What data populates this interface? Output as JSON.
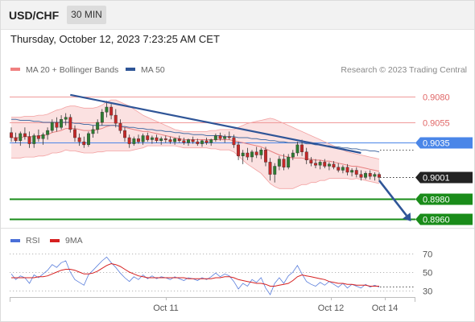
{
  "header": {
    "symbol": "USD/CHF",
    "timeframe": "30 MIN"
  },
  "timestamp": "Thursday, October 12, 2023 7:23:25 AM CET",
  "colors": {
    "bull": "#2e7d32",
    "bear": "#c62828",
    "ma50": "#4a6fa5",
    "band": "#f8c8c8",
    "trend": "#2f5597",
    "current": "#222222",
    "support": "#1a8c1a",
    "pivot": "#4a86e8",
    "resistance": "#e06666"
  },
  "chart_data": [
    {
      "type": "candlestick",
      "legend": [
        {
          "name": "MA 20 + Bollinger Bands",
          "color": "#f08080"
        },
        {
          "name": "MA 50",
          "color": "#2f5597"
        }
      ],
      "attribution": "Research © 2023 Trading Central",
      "x_ticks": [
        "Oct 11",
        "Oct 12",
        "Oct 14"
      ],
      "levels": [
        {
          "value": 0.908,
          "label": "0.9080",
          "kind": "resistance"
        },
        {
          "value": 0.9055,
          "label": "0.9055",
          "kind": "resistance"
        },
        {
          "value": 0.9035,
          "label": "0.9035",
          "kind": "pivot"
        },
        {
          "value": 0.9001,
          "label": "0.9001",
          "kind": "current"
        },
        {
          "value": 0.898,
          "label": "0.8980",
          "kind": "support"
        },
        {
          "value": 0.896,
          "label": "0.8960",
          "kind": "support"
        }
      ],
      "y_range": [
        0.895,
        0.91
      ],
      "candles": [
        [
          0.9045,
          0.905,
          0.9036,
          0.904
        ],
        [
          0.904,
          0.9045,
          0.9035,
          0.9037
        ],
        [
          0.9037,
          0.9046,
          0.9032,
          0.9044
        ],
        [
          0.9044,
          0.905,
          0.9038,
          0.9041
        ],
        [
          0.9041,
          0.9046,
          0.903,
          0.9034
        ],
        [
          0.9034,
          0.9044,
          0.903,
          0.9042
        ],
        [
          0.9042,
          0.9048,
          0.9036,
          0.9039
        ],
        [
          0.9039,
          0.9045,
          0.9033,
          0.9043
        ],
        [
          0.9043,
          0.905,
          0.9038,
          0.9047
        ],
        [
          0.9047,
          0.9058,
          0.9045,
          0.9055
        ],
        [
          0.9055,
          0.906,
          0.9046,
          0.905
        ],
        [
          0.905,
          0.9062,
          0.9048,
          0.9058
        ],
        [
          0.9058,
          0.9064,
          0.9052,
          0.906
        ],
        [
          0.906,
          0.9063,
          0.9045,
          0.9048
        ],
        [
          0.9048,
          0.9052,
          0.9036,
          0.904
        ],
        [
          0.904,
          0.9044,
          0.9032,
          0.9036
        ],
        [
          0.9036,
          0.9041,
          0.903,
          0.9033
        ],
        [
          0.9033,
          0.9046,
          0.9031,
          0.9044
        ],
        [
          0.9044,
          0.9052,
          0.904,
          0.9048
        ],
        [
          0.9048,
          0.9058,
          0.9044,
          0.9055
        ],
        [
          0.9055,
          0.9068,
          0.9052,
          0.9065
        ],
        [
          0.9065,
          0.9076,
          0.906,
          0.907
        ],
        [
          0.907,
          0.9073,
          0.9058,
          0.9062
        ],
        [
          0.9062,
          0.9068,
          0.905,
          0.9054
        ],
        [
          0.9054,
          0.9058,
          0.9044,
          0.9047
        ],
        [
          0.9047,
          0.905,
          0.9036,
          0.904
        ],
        [
          0.904,
          0.9043,
          0.903,
          0.9034
        ],
        [
          0.9034,
          0.9041,
          0.9032,
          0.9039
        ],
        [
          0.9039,
          0.9043,
          0.9034,
          0.9036
        ],
        [
          0.9036,
          0.9044,
          0.9033,
          0.9042
        ],
        [
          0.9042,
          0.9045,
          0.9036,
          0.9038
        ],
        [
          0.9038,
          0.9042,
          0.9034,
          0.904
        ],
        [
          0.904,
          0.9043,
          0.9035,
          0.9037
        ],
        [
          0.9037,
          0.9041,
          0.9033,
          0.9039
        ],
        [
          0.9039,
          0.9042,
          0.9035,
          0.9038
        ],
        [
          0.9038,
          0.9041,
          0.9034,
          0.9036
        ],
        [
          0.9036,
          0.904,
          0.9033,
          0.9039
        ],
        [
          0.9039,
          0.9042,
          0.9035,
          0.9037
        ],
        [
          0.9037,
          0.904,
          0.9033,
          0.9035
        ],
        [
          0.9035,
          0.9039,
          0.9032,
          0.9038
        ],
        [
          0.9038,
          0.9041,
          0.9034,
          0.9036
        ],
        [
          0.9036,
          0.9039,
          0.9032,
          0.9034
        ],
        [
          0.9034,
          0.9038,
          0.9031,
          0.9037
        ],
        [
          0.9037,
          0.904,
          0.9033,
          0.9035
        ],
        [
          0.9035,
          0.9039,
          0.9032,
          0.9038
        ],
        [
          0.9038,
          0.9044,
          0.9036,
          0.9042
        ],
        [
          0.9042,
          0.9045,
          0.9037,
          0.9039
        ],
        [
          0.9039,
          0.9043,
          0.9035,
          0.9041
        ],
        [
          0.9041,
          0.9046,
          0.9038,
          0.904
        ],
        [
          0.904,
          0.9043,
          0.903,
          0.9033
        ],
        [
          0.9033,
          0.9036,
          0.9018,
          0.9022
        ],
        [
          0.9022,
          0.9028,
          0.9014,
          0.9025
        ],
        [
          0.9025,
          0.903,
          0.9018,
          0.9021
        ],
        [
          0.9021,
          0.9028,
          0.9016,
          0.9026
        ],
        [
          0.9026,
          0.9031,
          0.902,
          0.9023
        ],
        [
          0.9023,
          0.903,
          0.9019,
          0.9028
        ],
        [
          0.9028,
          0.9031,
          0.9012,
          0.9016
        ],
        [
          0.9016,
          0.902,
          0.8998,
          0.9004
        ],
        [
          0.9004,
          0.9015,
          0.8996,
          0.9012
        ],
        [
          0.9012,
          0.9022,
          0.9008,
          0.9019
        ],
        [
          0.9019,
          0.9024,
          0.9008,
          0.9011
        ],
        [
          0.9011,
          0.9024,
          0.9009,
          0.9021
        ],
        [
          0.9021,
          0.9028,
          0.9018,
          0.9025
        ],
        [
          0.9025,
          0.9036,
          0.9022,
          0.9033
        ],
        [
          0.9033,
          0.9038,
          0.9022,
          0.9026
        ],
        [
          0.9026,
          0.903,
          0.9014,
          0.9018
        ],
        [
          0.9018,
          0.9021,
          0.9012,
          0.9015
        ],
        [
          0.9015,
          0.9019,
          0.901,
          0.9013
        ],
        [
          0.9013,
          0.9018,
          0.9009,
          0.9016
        ],
        [
          0.9016,
          0.9019,
          0.901,
          0.9012
        ],
        [
          0.9012,
          0.9016,
          0.9008,
          0.9014
        ],
        [
          0.9014,
          0.9017,
          0.9009,
          0.9011
        ],
        [
          0.9011,
          0.9015,
          0.9006,
          0.9008
        ],
        [
          0.9008,
          0.9013,
          0.9005,
          0.9011
        ],
        [
          0.9011,
          0.9014,
          0.9003,
          0.9006
        ],
        [
          0.9006,
          0.901,
          0.9002,
          0.9008
        ],
        [
          0.9008,
          0.9011,
          0.9001,
          0.9004
        ],
        [
          0.9004,
          0.9008,
          0.8998,
          0.9001
        ],
        [
          0.9001,
          0.9007,
          0.8999,
          0.9005
        ],
        [
          0.9005,
          0.9008,
          0.8999,
          0.9002
        ],
        [
          0.9002,
          0.9006,
          0.8998,
          0.9004
        ],
        [
          0.9004,
          0.9006,
          0.8998,
          0.9001
        ]
      ],
      "ma20": [
        0.904,
        0.904,
        0.904,
        0.9041,
        0.9041,
        0.9041,
        0.9042,
        0.9042,
        0.9043,
        0.9045,
        0.9046,
        0.9047,
        0.9049,
        0.9049,
        0.9049,
        0.9048,
        0.9047,
        0.9047,
        0.9047,
        0.9048,
        0.9049,
        0.9051,
        0.9052,
        0.9052,
        0.9051,
        0.905,
        0.9049,
        0.9048,
        0.9047,
        0.9046,
        0.9046,
        0.9045,
        0.9044,
        0.9043,
        0.9042,
        0.9041,
        0.904,
        0.9039,
        0.9038,
        0.9038,
        0.9038,
        0.9038,
        0.9038,
        0.9038,
        0.9038,
        0.9038,
        0.9038,
        0.9038,
        0.9038,
        0.9037,
        0.9036,
        0.9035,
        0.9034,
        0.9033,
        0.9032,
        0.9031,
        0.9029,
        0.9027,
        0.9025,
        0.9023,
        0.9022,
        0.9021,
        0.902,
        0.902,
        0.902,
        0.9019,
        0.9019,
        0.9018,
        0.9018,
        0.9017,
        0.9017,
        0.9016,
        0.9015,
        0.9014,
        0.9013,
        0.9012,
        0.9012,
        0.9011,
        0.901,
        0.9009,
        0.9008,
        0.9007
      ],
      "bb_upper": [
        0.906,
        0.906,
        0.906,
        0.9061,
        0.9061,
        0.9061,
        0.9062,
        0.9062,
        0.9063,
        0.9065,
        0.9067,
        0.9068,
        0.907,
        0.9071,
        0.9071,
        0.907,
        0.9069,
        0.9069,
        0.9069,
        0.907,
        0.9072,
        0.9075,
        0.9077,
        0.9077,
        0.9075,
        0.9073,
        0.9071,
        0.9068,
        0.9065,
        0.9062,
        0.906,
        0.9058,
        0.9056,
        0.9054,
        0.9052,
        0.905,
        0.9048,
        0.9047,
        0.9046,
        0.9046,
        0.9046,
        0.9046,
        0.9046,
        0.9046,
        0.9047,
        0.9047,
        0.9048,
        0.9048,
        0.9048,
        0.9048,
        0.905,
        0.9052,
        0.9054,
        0.9055,
        0.9056,
        0.9057,
        0.9058,
        0.9059,
        0.9058,
        0.9056,
        0.9054,
        0.9052,
        0.905,
        0.9048,
        0.9046,
        0.9044,
        0.9042,
        0.904,
        0.9038,
        0.9036,
        0.9034,
        0.9032,
        0.903,
        0.9028,
        0.9026,
        0.9025,
        0.9024,
        0.9023,
        0.9022,
        0.9021,
        0.902,
        0.9019
      ],
      "bb_lower": [
        0.902,
        0.902,
        0.902,
        0.9021,
        0.9021,
        0.9021,
        0.9022,
        0.9022,
        0.9023,
        0.9025,
        0.9025,
        0.9026,
        0.9028,
        0.9027,
        0.9027,
        0.9026,
        0.9025,
        0.9025,
        0.9025,
        0.9026,
        0.9026,
        0.9027,
        0.9027,
        0.9027,
        0.9027,
        0.9027,
        0.9027,
        0.9028,
        0.9029,
        0.903,
        0.9032,
        0.9032,
        0.9032,
        0.9032,
        0.9032,
        0.9032,
        0.9032,
        0.9031,
        0.903,
        0.903,
        0.903,
        0.903,
        0.903,
        0.903,
        0.9029,
        0.9029,
        0.9028,
        0.9028,
        0.9028,
        0.9026,
        0.9022,
        0.9018,
        0.9014,
        0.9011,
        0.9008,
        0.9005,
        0.9,
        0.8995,
        0.8992,
        0.899,
        0.899,
        0.899,
        0.899,
        0.8992,
        0.8994,
        0.8994,
        0.8996,
        0.8996,
        0.8998,
        0.8998,
        0.9,
        0.9,
        0.9,
        0.9,
        0.9,
        0.8999,
        0.9,
        0.8999,
        0.8998,
        0.8997,
        0.8996,
        0.8995
      ],
      "ma50": [
        0.9058,
        0.9058,
        0.9057,
        0.9057,
        0.9057,
        0.9056,
        0.9056,
        0.9055,
        0.9055,
        0.9055,
        0.9055,
        0.9055,
        0.9055,
        0.9055,
        0.9054,
        0.9054,
        0.9053,
        0.9053,
        0.9052,
        0.9052,
        0.9052,
        0.9052,
        0.9052,
        0.9052,
        0.9051,
        0.9051,
        0.905,
        0.905,
        0.9049,
        0.9049,
        0.9048,
        0.9048,
        0.9047,
        0.9047,
        0.9046,
        0.9046,
        0.9045,
        0.9045,
        0.9044,
        0.9044,
        0.9043,
        0.9043,
        0.9043,
        0.9042,
        0.9042,
        0.9042,
        0.9042,
        0.9041,
        0.9041,
        0.9041,
        0.904,
        0.904,
        0.904,
        0.9039,
        0.9039,
        0.9038,
        0.9038,
        0.9037,
        0.9037,
        0.9036,
        0.9036,
        0.9035,
        0.9035,
        0.9035,
        0.9035,
        0.9034,
        0.9034,
        0.9033,
        0.9033,
        0.9032,
        0.9032,
        0.9031,
        0.9031,
        0.903,
        0.903,
        0.9029,
        0.9029,
        0.9028,
        0.9028,
        0.9027,
        0.9027,
        0.9026
      ],
      "trendline": [
        [
          13,
          0.9082
        ],
        [
          77,
          0.9025
        ]
      ],
      "forecast_arrow": [
        [
          81,
          0.8998
        ],
        [
          88,
          0.8958
        ]
      ]
    },
    {
      "type": "line",
      "legend": [
        {
          "name": "RSI",
          "color": "#4a6fd8"
        },
        {
          "name": "9MA",
          "color": "#d62020"
        }
      ],
      "y_ticks": [
        70,
        50,
        30
      ],
      "y_range": [
        20,
        80
      ],
      "series": [
        {
          "name": "RSI",
          "values": [
            48,
            42,
            46,
            44,
            38,
            47,
            44,
            48,
            52,
            58,
            55,
            60,
            62,
            50,
            42,
            39,
            36,
            47,
            52,
            57,
            62,
            66,
            60,
            55,
            49,
            44,
            40,
            45,
            42,
            47,
            43,
            46,
            43,
            45,
            44,
            42,
            45,
            43,
            41,
            44,
            43,
            41,
            44,
            42,
            45,
            49,
            45,
            48,
            46,
            40,
            32,
            38,
            35,
            42,
            39,
            44,
            33,
            26,
            38,
            44,
            38,
            46,
            50,
            57,
            48,
            40,
            37,
            35,
            39,
            36,
            40,
            37,
            34,
            38,
            33,
            37,
            35,
            33,
            37,
            34,
            36,
            34
          ]
        },
        {
          "name": "9MA",
          "values": [
            44,
            44,
            44,
            44,
            44,
            44,
            45,
            45,
            46,
            48,
            50,
            52,
            53,
            53,
            52,
            50,
            48,
            48,
            49,
            51,
            54,
            57,
            59,
            58,
            56,
            53,
            50,
            48,
            46,
            45,
            44,
            44,
            44,
            44,
            44,
            44,
            44,
            44,
            44,
            43,
            43,
            43,
            43,
            43,
            43,
            44,
            44,
            45,
            45,
            44,
            42,
            41,
            40,
            39,
            38,
            38,
            37,
            35,
            35,
            36,
            37,
            38,
            41,
            45,
            47,
            46,
            45,
            44,
            43,
            42,
            40,
            39,
            38,
            38,
            37,
            37,
            36,
            36,
            36,
            35,
            35,
            35
          ]
        }
      ]
    }
  ]
}
